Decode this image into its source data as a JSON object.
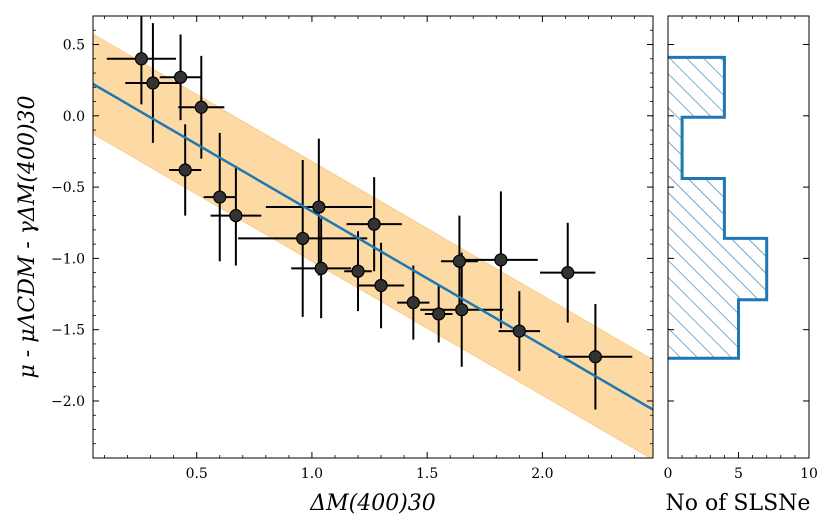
{
  "chart_data": [
    {
      "type": "scatter",
      "name": "main-panel",
      "xlabel": "ΔM(400)30",
      "ylabel": "μ - μΛCDM - γΔM(400)30",
      "xlim": [
        0.05,
        2.48
      ],
      "ylim": [
        -2.4,
        0.7
      ],
      "xticks": [
        0.5,
        1.0,
        1.5,
        2.0
      ],
      "xtick_labels": [
        "0.5",
        "1.0",
        "1.5",
        "2.0"
      ],
      "yticks": [
        0.5,
        0.0,
        -0.5,
        -1.0,
        -1.5,
        -2.0
      ],
      "ytick_labels": [
        "0.5",
        "0.0",
        "−0.5",
        "−1.0",
        "−1.5",
        "−2.0"
      ],
      "fit_line": {
        "slope": -0.94,
        "intercept": 0.27,
        "color": "#1f77b4"
      },
      "band": {
        "half_width": 0.35,
        "color": "#fdd9a0"
      },
      "points": [
        {
          "x": 0.26,
          "y": 0.4,
          "xerr": 0.15,
          "yerr": 0.32
        },
        {
          "x": 0.31,
          "y": 0.23,
          "xerr": 0.12,
          "yerr": 0.42
        },
        {
          "x": 0.43,
          "y": 0.27,
          "xerr": 0.09,
          "yerr": 0.3
        },
        {
          "x": 0.52,
          "y": 0.06,
          "xerr": 0.1,
          "yerr": 0.36
        },
        {
          "x": 0.45,
          "y": -0.38,
          "xerr": 0.07,
          "yerr": 0.32
        },
        {
          "x": 0.6,
          "y": -0.57,
          "xerr": 0.07,
          "yerr": 0.45
        },
        {
          "x": 0.67,
          "y": -0.7,
          "xerr": 0.11,
          "yerr": 0.35
        },
        {
          "x": 0.96,
          "y": -0.86,
          "xerr": 0.28,
          "yerr": 0.55
        },
        {
          "x": 1.03,
          "y": -0.64,
          "xerr": 0.23,
          "yerr": 0.48
        },
        {
          "x": 1.04,
          "y": -1.07,
          "xerr": 0.13,
          "yerr": 0.35
        },
        {
          "x": 1.2,
          "y": -1.09,
          "xerr": 0.06,
          "yerr": 0.28
        },
        {
          "x": 1.27,
          "y": -0.76,
          "xerr": 0.12,
          "yerr": 0.33
        },
        {
          "x": 1.3,
          "y": -1.19,
          "xerr": 0.1,
          "yerr": 0.3
        },
        {
          "x": 1.44,
          "y": -1.31,
          "xerr": 0.07,
          "yerr": 0.26
        },
        {
          "x": 1.55,
          "y": -1.39,
          "xerr": 0.06,
          "yerr": 0.2
        },
        {
          "x": 1.64,
          "y": -1.02,
          "xerr": 0.08,
          "yerr": 0.32
        },
        {
          "x": 1.65,
          "y": -1.36,
          "xerr": 0.18,
          "yerr": 0.4
        },
        {
          "x": 1.82,
          "y": -1.01,
          "xerr": 0.16,
          "yerr": 0.48
        },
        {
          "x": 1.9,
          "y": -1.51,
          "xerr": 0.09,
          "yerr": 0.28
        },
        {
          "x": 2.11,
          "y": -1.1,
          "xerr": 0.12,
          "yerr": 0.35
        },
        {
          "x": 2.23,
          "y": -1.69,
          "xerr": 0.16,
          "yerr": 0.37
        }
      ],
      "marker_color": "#333333"
    },
    {
      "type": "histogram",
      "name": "side-histogram",
      "orientation": "horizontal",
      "xlabel": "No of SLSNe",
      "xlim": [
        0,
        10
      ],
      "xticks": [
        0,
        5,
        10
      ],
      "xtick_labels": [
        "0",
        "5",
        "10"
      ],
      "bins": [
        {
          "y0": -1.7,
          "y1": -1.29,
          "count": 5
        },
        {
          "y0": -1.29,
          "y1": -0.86,
          "count": 7
        },
        {
          "y0": -0.86,
          "y1": -0.44,
          "count": 4
        },
        {
          "y0": -0.44,
          "y1": -0.01,
          "count": 1
        },
        {
          "y0": -0.01,
          "y1": 0.41,
          "count": 4
        }
      ],
      "color": "#1f77b4"
    }
  ]
}
